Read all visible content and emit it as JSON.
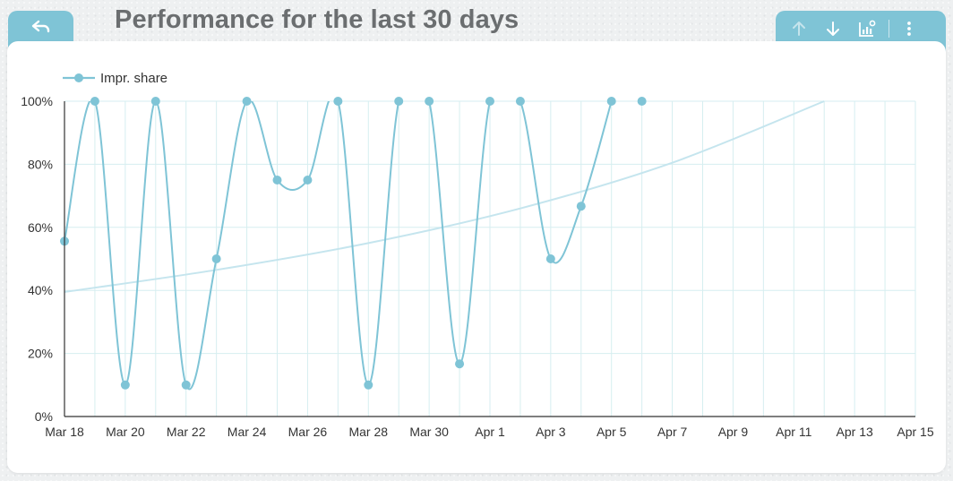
{
  "header": {
    "title": "Performance for the last 30 days"
  },
  "colors": {
    "accent": "#7fc4d6",
    "series": "#7fc4d6",
    "trend": "#c5e5ee",
    "grid": "#d6eef0"
  },
  "icons": {
    "back": "undo-arrow-icon",
    "toolbar": [
      "arrow-up-icon",
      "arrow-down-icon",
      "chart-settings-icon",
      "more-vertical-icon"
    ]
  },
  "chart_data": {
    "type": "line",
    "title": "Performance for the last 30 days",
    "xlabel": "",
    "ylabel": "",
    "legend": "top-left",
    "grid": true,
    "x_ticks": [
      "Mar 18",
      "Mar 20",
      "Mar 22",
      "Mar 24",
      "Mar 26",
      "Mar 28",
      "Mar 30",
      "Apr 1",
      "Apr 3",
      "Apr 5",
      "Apr 7",
      "Apr 9",
      "Apr 11",
      "Apr 13",
      "Apr 15"
    ],
    "y_ticks": [
      "0%",
      "20%",
      "40%",
      "60%",
      "80%",
      "100%"
    ],
    "ylim": [
      0,
      100
    ],
    "xlim": [
      "Mar 18",
      "Apr 15"
    ],
    "series": [
      {
        "name": "Impr. share",
        "x": [
          "Mar 18",
          "Mar 19",
          "Mar 20",
          "Mar 21",
          "Mar 22",
          "Mar 23",
          "Mar 24",
          "Mar 25",
          "Mar 26",
          "Mar 27",
          "Mar 28",
          "Mar 29",
          "Mar 30",
          "Mar 31",
          "Apr 1",
          "Apr 2",
          "Apr 3",
          "Apr 4",
          "Apr 5",
          "Apr 6"
        ],
        "values": [
          55.6,
          100,
          10,
          100,
          10,
          50,
          100,
          75,
          75,
          100,
          10,
          100,
          100,
          16.7,
          100,
          100,
          50,
          66.7,
          100,
          100
        ]
      }
    ],
    "trendline": {
      "x": [
        "Mar 18",
        "Mar 23",
        "Mar 28",
        "Apr 2",
        "Apr 7",
        "Apr 12"
      ],
      "values": [
        39.5,
        46.5,
        55,
        66,
        80.5,
        100
      ]
    }
  }
}
